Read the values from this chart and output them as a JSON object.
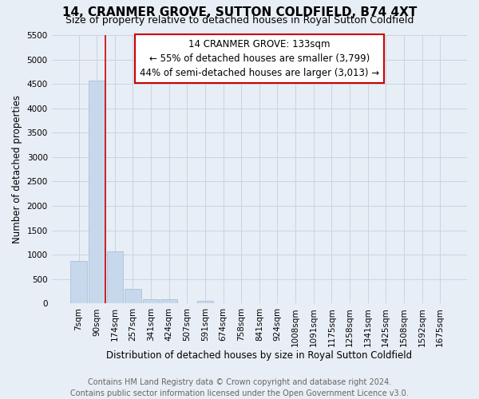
{
  "title": "14, CRANMER GROVE, SUTTON COLDFIELD, B74 4XT",
  "subtitle": "Size of property relative to detached houses in Royal Sutton Coldfield",
  "xlabel": "Distribution of detached houses by size in Royal Sutton Coldfield",
  "ylabel": "Number of detached properties",
  "bins": [
    "7sqm",
    "90sqm",
    "174sqm",
    "257sqm",
    "341sqm",
    "424sqm",
    "507sqm",
    "591sqm",
    "674sqm",
    "758sqm",
    "841sqm",
    "924sqm",
    "1008sqm",
    "1091sqm",
    "1175sqm",
    "1258sqm",
    "1341sqm",
    "1425sqm",
    "1508sqm",
    "1592sqm",
    "1675sqm"
  ],
  "values": [
    880,
    4560,
    1070,
    300,
    80,
    80,
    0,
    60,
    0,
    0,
    0,
    0,
    0,
    0,
    0,
    0,
    0,
    0,
    0,
    0,
    0
  ],
  "bar_color": "#c8d8ec",
  "bar_edge_color": "#a8c0d8",
  "vline_color": "#cc0000",
  "annotation_text": "14 CRANMER GROVE: 133sqm\n← 55% of detached houses are smaller (3,799)\n44% of semi-detached houses are larger (3,013) →",
  "annotation_box_color": "#ffffff",
  "annotation_box_edge": "#cc0000",
  "ylim": [
    0,
    5500
  ],
  "yticks": [
    0,
    500,
    1000,
    1500,
    2000,
    2500,
    3000,
    3500,
    4000,
    4500,
    5000,
    5500
  ],
  "grid_color": "#c8d4e4",
  "background_color": "#e8eef5",
  "footer_line1": "Contains HM Land Registry data © Crown copyright and database right 2024.",
  "footer_line2": "Contains public sector information licensed under the Open Government Licence v3.0.",
  "title_fontsize": 11,
  "subtitle_fontsize": 9,
  "xlabel_fontsize": 8.5,
  "ylabel_fontsize": 8.5,
  "tick_fontsize": 7.5,
  "footer_fontsize": 7,
  "annotation_fontsize": 8.5
}
